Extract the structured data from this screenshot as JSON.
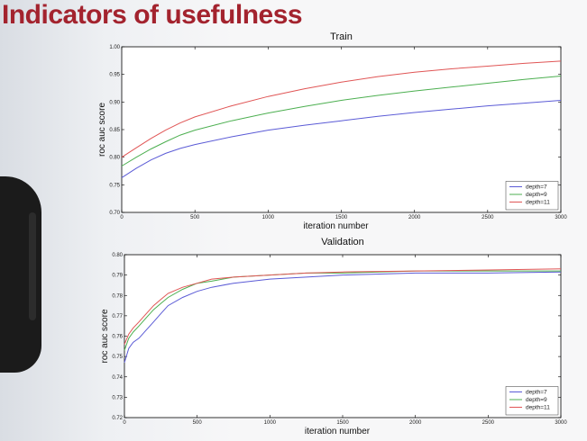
{
  "slide": {
    "title": "Indicators of usefulness"
  },
  "chart_data": [
    {
      "type": "line",
      "title": "Train",
      "xlabel": "iteration number",
      "ylabel": "roc auc score",
      "xlim": [
        0,
        3000
      ],
      "ylim": [
        0.7,
        1.0
      ],
      "xticks": [
        0,
        500,
        1000,
        1500,
        2000,
        2500,
        3000
      ],
      "yticks": [
        0.7,
        0.75,
        0.8,
        0.85,
        0.9,
        0.95,
        1.0
      ],
      "xtick_labels": [
        "0",
        "500",
        "1000",
        "1500",
        "2000",
        "2500",
        "3000"
      ],
      "ytick_labels": [
        "0.70",
        "0.75",
        "0.80",
        "0.85",
        "0.90",
        "0.95",
        "1.00"
      ],
      "legend_position": "bottom-right",
      "grid": false,
      "x": [
        0,
        100,
        200,
        300,
        400,
        500,
        750,
        1000,
        1250,
        1500,
        1750,
        2000,
        2250,
        2500,
        2750,
        3000
      ],
      "series": [
        {
          "name": "depth=7",
          "color": "#5b5bd6",
          "values": [
            0.763,
            0.78,
            0.795,
            0.807,
            0.816,
            0.823,
            0.837,
            0.849,
            0.858,
            0.866,
            0.874,
            0.881,
            0.887,
            0.893,
            0.898,
            0.903
          ]
        },
        {
          "name": "depth=9",
          "color": "#4caf50",
          "values": [
            0.784,
            0.8,
            0.815,
            0.828,
            0.84,
            0.849,
            0.866,
            0.88,
            0.892,
            0.903,
            0.912,
            0.92,
            0.927,
            0.934,
            0.941,
            0.947
          ]
        },
        {
          "name": "depth=11",
          "color": "#e05555",
          "values": [
            0.8,
            0.817,
            0.834,
            0.849,
            0.862,
            0.873,
            0.893,
            0.91,
            0.924,
            0.936,
            0.946,
            0.954,
            0.96,
            0.965,
            0.97,
            0.974
          ]
        }
      ]
    },
    {
      "type": "line",
      "title": "Validation",
      "xlabel": "iteration number",
      "ylabel": "roc auc score",
      "xlim": [
        0,
        3000
      ],
      "ylim": [
        0.72,
        0.8
      ],
      "xticks": [
        0,
        500,
        1000,
        1500,
        2000,
        2500,
        3000
      ],
      "yticks": [
        0.72,
        0.73,
        0.74,
        0.75,
        0.76,
        0.77,
        0.78,
        0.79,
        0.8
      ],
      "xtick_labels": [
        "0",
        "500",
        "1000",
        "1500",
        "2000",
        "2500",
        "3000"
      ],
      "ytick_labels": [
        "0.72",
        "0.73",
        "0.74",
        "0.75",
        "0.76",
        "0.77",
        "0.78",
        "0.79",
        "0.80"
      ],
      "legend_position": "bottom-right",
      "grid": false,
      "x": [
        0,
        30,
        60,
        100,
        150,
        200,
        250,
        300,
        400,
        500,
        600,
        750,
        1000,
        1250,
        1500,
        2000,
        2500,
        3000
      ],
      "series": [
        {
          "name": "depth=7",
          "color": "#5b5bd6",
          "values": [
            0.747,
            0.754,
            0.757,
            0.759,
            0.763,
            0.767,
            0.771,
            0.775,
            0.779,
            0.782,
            0.784,
            0.786,
            0.788,
            0.789,
            0.79,
            0.791,
            0.791,
            0.7915
          ]
        },
        {
          "name": "depth=9",
          "color": "#4caf50",
          "values": [
            0.753,
            0.759,
            0.762,
            0.765,
            0.769,
            0.773,
            0.776,
            0.779,
            0.783,
            0.786,
            0.787,
            0.789,
            0.79,
            0.791,
            0.791,
            0.792,
            0.792,
            0.792
          ]
        },
        {
          "name": "depth=11",
          "color": "#e05555",
          "values": [
            0.756,
            0.761,
            0.764,
            0.767,
            0.771,
            0.775,
            0.778,
            0.781,
            0.784,
            0.786,
            0.788,
            0.789,
            0.79,
            0.791,
            0.7915,
            0.792,
            0.7925,
            0.793
          ]
        }
      ]
    }
  ]
}
